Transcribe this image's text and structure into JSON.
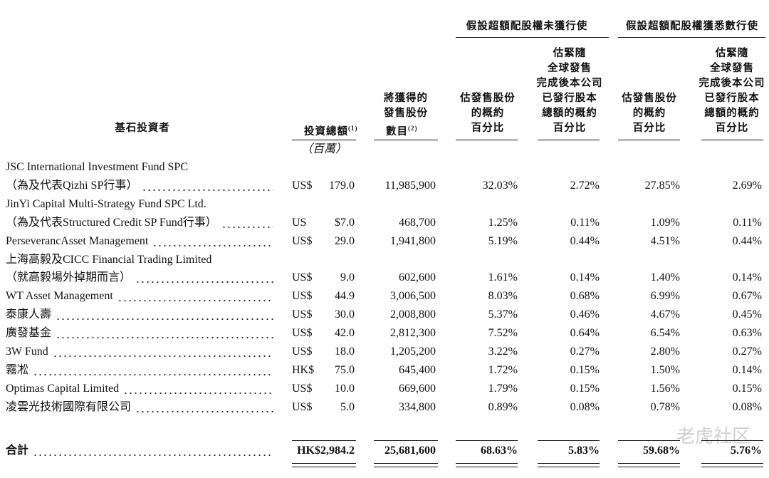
{
  "table": {
    "group_headers": [
      "假設超額配股權未獲行使",
      "假設超額配股權獲悉數行使"
    ],
    "columns": [
      {
        "lines": [
          "基石投資者"
        ]
      },
      {
        "lines": [
          "投資總額"
        ],
        "note": "(1)"
      },
      {
        "lines": [
          "將獲得的",
          "發售股份",
          "數目"
        ],
        "note": "(2)"
      },
      {
        "lines": [
          "估發售股份",
          "的概約",
          "百分比"
        ]
      },
      {
        "lines": [
          "估緊隨",
          "全球發售",
          "完成後本公司",
          "已發行股本",
          "總額的概約",
          "百分比"
        ]
      },
      {
        "lines": [
          "估發售股份",
          "的概約",
          "百分比"
        ]
      },
      {
        "lines": [
          "估緊隨",
          "全球發售",
          "完成後本公司",
          "已發行股本",
          "總額的概約",
          "百分比"
        ]
      }
    ],
    "unit": "（百萬）",
    "rows": [
      {
        "name": [
          "JSC International Investment Fund SPC",
          "（為及代表Qizhi SP行事）"
        ],
        "currency": "US$",
        "amount": "179.0",
        "shares": "11,985,900",
        "pct": [
          "32.03%",
          "2.72%",
          "27.85%",
          "2.69%"
        ]
      },
      {
        "name": [
          "JinYi Capital Multi-Strategy Fund SPC Ltd.",
          "（為及代表Structured Credit SP Fund行事）"
        ],
        "currency": "US",
        "amount": "$7.0",
        "shares": "468,700",
        "pct": [
          "1.25%",
          "0.11%",
          "1.09%",
          "0.11%"
        ]
      },
      {
        "name": [
          "PerseverancAsset Management"
        ],
        "currency": "US$",
        "amount": "29.0",
        "shares": "1,941,800",
        "pct": [
          "5.19%",
          "0.44%",
          "4.51%",
          "0.44%"
        ]
      },
      {
        "name": [
          "上海高毅及CICC Financial Trading Limited",
          "（就高毅場外掉期而言）"
        ],
        "currency": "US$",
        "amount": "9.0",
        "shares": "602,600",
        "pct": [
          "1.61%",
          "0.14%",
          "1.40%",
          "0.14%"
        ]
      },
      {
        "name": [
          "WT Asset Management"
        ],
        "currency": "US$",
        "amount": "44.9",
        "shares": "3,006,500",
        "pct": [
          "8.03%",
          "0.68%",
          "6.99%",
          "0.67%"
        ]
      },
      {
        "name": [
          "泰康人壽"
        ],
        "currency": "US$",
        "amount": "30.0",
        "shares": "2,008,800",
        "pct": [
          "5.37%",
          "0.46%",
          "4.67%",
          "0.45%"
        ]
      },
      {
        "name": [
          "廣發基金"
        ],
        "currency": "US$",
        "amount": "42.0",
        "shares": "2,812,300",
        "pct": [
          "7.52%",
          "0.64%",
          "6.54%",
          "0.63%"
        ]
      },
      {
        "name": [
          "3W Fund"
        ],
        "currency": "US$",
        "amount": "18.0",
        "shares": "1,205,200",
        "pct": [
          "3.22%",
          "0.27%",
          "2.80%",
          "0.27%"
        ]
      },
      {
        "name": [
          "霧凇"
        ],
        "currency": "HK$",
        "amount": "75.0",
        "shares": "645,400",
        "pct": [
          "1.72%",
          "0.15%",
          "1.50%",
          "0.14%"
        ]
      },
      {
        "name": [
          "Optimas Capital Limited"
        ],
        "currency": "US$",
        "amount": "10.0",
        "shares": "669,600",
        "pct": [
          "1.79%",
          "0.15%",
          "1.56%",
          "0.15%"
        ]
      },
      {
        "name": [
          "凌雲光技術國際有限公司"
        ],
        "currency": "US$",
        "amount": "5.0",
        "shares": "334,800",
        "pct": [
          "0.89%",
          "0.08%",
          "0.78%",
          "0.08%"
        ]
      }
    ],
    "total": {
      "name": "合計",
      "amount": "HK$2,984.2",
      "shares": "25,681,600",
      "pct": [
        "68.63%",
        "5.83%",
        "59.68%",
        "5.76%"
      ]
    }
  },
  "watermark": "老虎社区"
}
